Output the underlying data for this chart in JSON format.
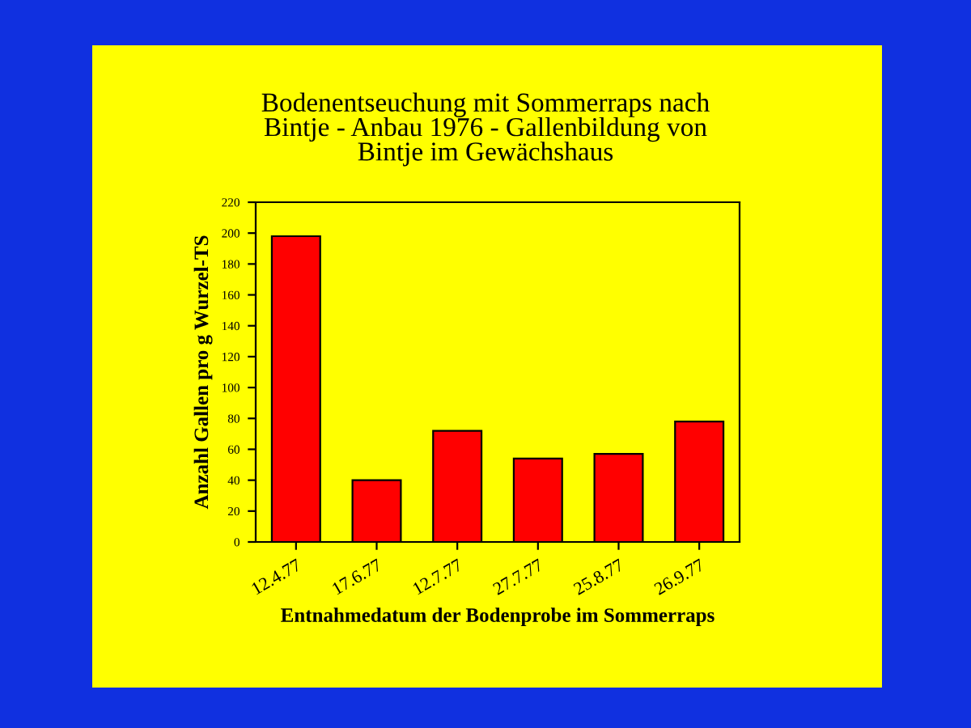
{
  "chart_data": {
    "type": "bar",
    "title": "Bodenentseuchung mit Sommerraps nach\nBintje - Anbau 1976 - Gallenbildung von\nBintje im Gewächshaus",
    "xlabel": "Entnahmedatum der Bodenprobe im Sommerraps",
    "ylabel": "Anzahl Gallen pro g Wurzel-TS",
    "categories": [
      "12.4.77",
      "17.6.77",
      "12.7.77",
      "27.7.77",
      "25.8.77",
      "26.9.77"
    ],
    "values": [
      198,
      40,
      72,
      54,
      57,
      78
    ],
    "color": "#ff0000",
    "ylim": [
      0,
      220
    ],
    "yticks": [
      0,
      20,
      40,
      60,
      80,
      100,
      120,
      140,
      160,
      180,
      200,
      220
    ]
  }
}
